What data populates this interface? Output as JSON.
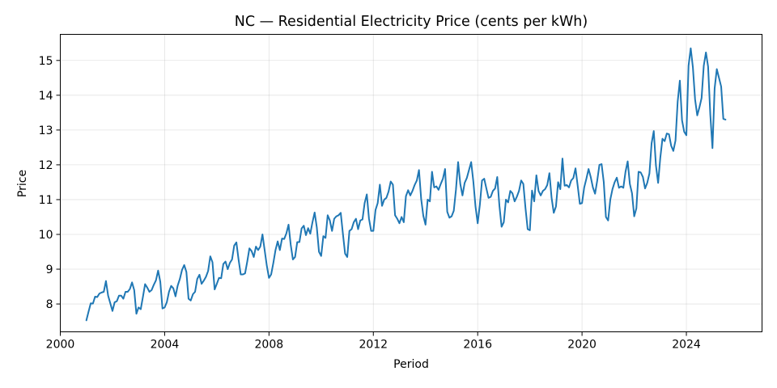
{
  "chart_data": {
    "type": "line",
    "title": "NC — Residential Electricity Price (cents per kWh)",
    "xlabel": "Period",
    "ylabel": "Price",
    "xlim": [
      2000.0,
      2026.9
    ],
    "ylim": [
      7.2,
      15.75
    ],
    "xticks": [
      2000,
      2004,
      2008,
      2012,
      2016,
      2020,
      2024
    ],
    "yticks": [
      8,
      9,
      10,
      11,
      12,
      13,
      14,
      15
    ],
    "grid": true,
    "legend": "none",
    "color": "#1f77b4",
    "series": [
      {
        "start_year": 2001,
        "frequency": "monthly",
        "values": [
          7.53,
          7.78,
          8.02,
          8.01,
          8.21,
          8.2,
          8.3,
          8.33,
          8.35,
          8.66,
          8.24,
          8.02,
          7.8,
          8.05,
          8.08,
          8.24,
          8.24,
          8.15,
          8.35,
          8.35,
          8.43,
          8.62,
          8.4,
          7.72,
          7.9,
          7.85,
          8.2,
          8.57,
          8.47,
          8.35,
          8.4,
          8.55,
          8.68,
          8.96,
          8.64,
          7.87,
          7.9,
          8.05,
          8.35,
          8.52,
          8.45,
          8.22,
          8.53,
          8.72,
          8.98,
          9.12,
          8.92,
          8.15,
          8.1,
          8.28,
          8.35,
          8.72,
          8.84,
          8.58,
          8.67,
          8.78,
          8.95,
          9.37,
          9.2,
          8.42,
          8.58,
          8.75,
          8.74,
          9.15,
          9.22,
          9.0,
          9.18,
          9.28,
          9.68,
          9.77,
          9.28,
          8.85,
          8.85,
          8.88,
          9.22,
          9.6,
          9.52,
          9.35,
          9.65,
          9.55,
          9.65,
          10.0,
          9.55,
          9.1,
          8.75,
          8.85,
          9.18,
          9.55,
          9.8,
          9.55,
          9.88,
          9.87,
          10.03,
          10.28,
          9.7,
          9.28,
          9.35,
          9.78,
          9.78,
          10.17,
          10.25,
          9.98,
          10.18,
          10.02,
          10.35,
          10.63,
          10.2,
          9.5,
          9.38,
          9.95,
          9.9,
          10.55,
          10.4,
          10.1,
          10.45,
          10.52,
          10.55,
          10.62,
          10.02,
          9.45,
          9.35,
          10.1,
          10.15,
          10.35,
          10.45,
          10.15,
          10.4,
          10.43,
          10.9,
          11.15,
          10.45,
          10.1,
          10.1,
          10.7,
          10.9,
          11.43,
          10.82,
          11.0,
          11.05,
          11.23,
          11.52,
          11.43,
          10.55,
          10.45,
          10.32,
          10.5,
          10.35,
          11.1,
          11.27,
          11.12,
          11.25,
          11.42,
          11.55,
          11.85,
          11.02,
          10.53,
          10.28,
          11.0,
          10.95,
          11.8,
          11.35,
          11.38,
          11.28,
          11.45,
          11.6,
          11.88,
          10.65,
          10.48,
          10.52,
          10.68,
          11.28,
          12.08,
          11.45,
          11.12,
          11.48,
          11.62,
          11.85,
          12.08,
          11.52,
          10.8,
          10.32,
          10.85,
          11.55,
          11.6,
          11.32,
          11.05,
          11.08,
          11.25,
          11.32,
          11.65,
          10.82,
          10.22,
          10.35,
          11.0,
          10.92,
          11.25,
          11.18,
          10.95,
          11.08,
          11.25,
          11.55,
          11.45,
          10.75,
          10.15,
          10.12,
          11.26,
          10.95,
          11.7,
          11.25,
          11.12,
          11.25,
          11.3,
          11.42,
          11.76,
          11.05,
          10.62,
          10.8,
          11.5,
          11.3,
          12.18,
          11.4,
          11.42,
          11.35,
          11.55,
          11.62,
          11.9,
          11.4,
          10.88,
          10.9,
          11.35,
          11.6,
          11.88,
          11.65,
          11.35,
          11.17,
          11.55,
          12.0,
          12.02,
          11.5,
          10.5,
          10.4,
          11.0,
          11.3,
          11.5,
          11.63,
          11.34,
          11.38,
          11.34,
          11.8,
          12.1,
          11.45,
          11.18,
          10.52,
          10.75,
          11.8,
          11.78,
          11.65,
          11.32,
          11.48,
          11.75,
          12.62,
          12.97,
          11.98,
          11.48,
          12.2,
          12.75,
          12.68,
          12.9,
          12.88,
          12.55,
          12.4,
          12.7,
          13.82,
          14.42,
          13.28,
          12.95,
          12.85,
          14.85,
          15.35,
          14.8,
          13.88,
          13.42,
          13.65,
          13.92,
          14.85,
          15.23,
          14.82,
          13.45,
          12.48,
          14.2,
          14.75,
          14.5,
          14.25,
          13.32,
          13.3
        ]
      }
    ]
  }
}
